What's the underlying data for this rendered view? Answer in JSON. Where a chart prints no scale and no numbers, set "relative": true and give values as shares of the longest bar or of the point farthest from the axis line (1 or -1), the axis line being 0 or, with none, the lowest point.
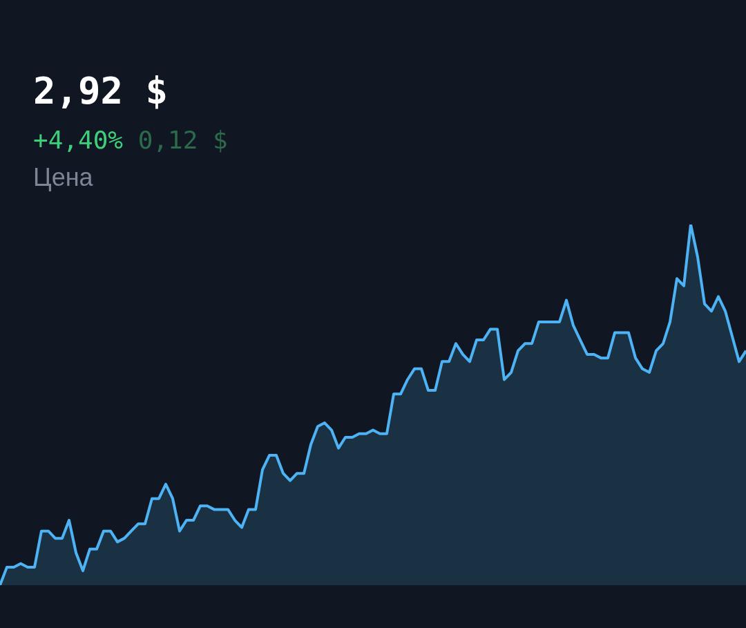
{
  "chart_data": {
    "type": "area",
    "title": "2,92 $",
    "subtitle": "+4,40%",
    "annotations": [
      "0,12 $",
      "Цена"
    ],
    "relative": true,
    "categories": [
      null,
      null,
      null,
      null,
      null,
      null,
      null,
      null,
      null,
      null,
      null,
      null,
      null,
      null,
      null,
      null,
      null,
      null,
      null,
      null,
      null,
      null,
      null,
      null,
      null,
      null,
      null,
      null,
      null,
      null,
      null,
      null,
      null,
      null,
      null,
      null,
      null,
      null,
      null,
      null,
      null,
      null,
      null,
      null,
      null,
      null,
      null,
      null,
      null,
      null,
      null,
      null,
      null,
      null,
      null,
      null,
      null,
      null,
      null,
      null,
      null,
      null,
      null,
      null,
      null,
      null,
      null,
      null,
      null,
      null,
      null,
      null,
      null,
      null,
      null,
      null,
      null,
      null,
      null,
      null,
      null,
      null,
      null,
      null,
      null,
      null,
      null,
      null,
      null,
      null,
      null,
      null,
      null,
      null,
      null,
      null,
      null,
      null,
      null,
      null,
      null,
      null,
      null,
      null,
      null,
      null,
      null,
      null,
      null
    ],
    "series": [
      {
        "color": "#4db3f5",
        "values": [
          0,
          0.05,
          0.05,
          0.06,
          0.05,
          0.05,
          0.15,
          0.15,
          0.13,
          0.13,
          0.18,
          0.09,
          0.04,
          0.1,
          0.1,
          0.15,
          0.15,
          0.12,
          0.13,
          0.15,
          0.17,
          0.17,
          0.24,
          0.24,
          0.28,
          0.24,
          0.15,
          0.18,
          0.18,
          0.22,
          0.22,
          0.21,
          0.21,
          0.21,
          0.18,
          0.16,
          0.21,
          0.21,
          0.32,
          0.36,
          0.36,
          0.31,
          0.29,
          0.31,
          0.31,
          0.39,
          0.44,
          0.45,
          0.43,
          0.38,
          0.41,
          0.41,
          0.42,
          0.42,
          0.43,
          0.42,
          0.42,
          0.53,
          0.53,
          0.57,
          0.6,
          0.6,
          0.54,
          0.54,
          0.62,
          0.62,
          0.67,
          0.64,
          0.62,
          0.68,
          0.68,
          0.71,
          0.71,
          0.57,
          0.59,
          0.65,
          0.67,
          0.67,
          0.73,
          0.73,
          0.73,
          0.73,
          0.79,
          0.72,
          0.68,
          0.64,
          0.64,
          0.63,
          0.63,
          0.7,
          0.7,
          0.7,
          0.63,
          0.6,
          0.59,
          0.65,
          0.67,
          0.73,
          0.85,
          0.83,
          1,
          0.91,
          0.78,
          0.76,
          0.8,
          0.76,
          0.69,
          0.62,
          0.65
        ]
      }
    ]
  }
}
